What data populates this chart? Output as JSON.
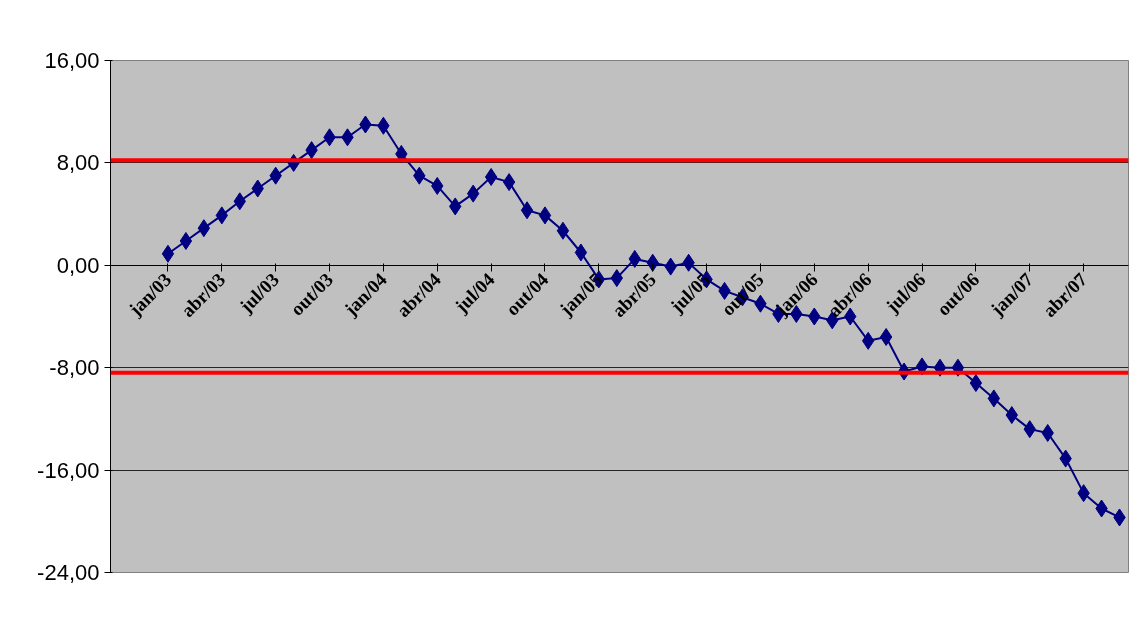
{
  "chart_data": {
    "type": "line",
    "categories": [
      "jan/03",
      null,
      null,
      "abr/03",
      null,
      null,
      "jul/03",
      null,
      null,
      "out/03",
      null,
      null,
      "jan/04",
      null,
      null,
      "abr/04",
      null,
      null,
      "jul/04",
      null,
      null,
      "out/04",
      null,
      null,
      "jan/05",
      null,
      null,
      "abr/05",
      null,
      null,
      "jul/05",
      null,
      null,
      "out/05",
      null,
      null,
      "jan/06",
      null,
      null,
      "abr/06",
      null,
      null,
      "jul/06",
      null,
      null,
      "out/06",
      null,
      null,
      "jan/07",
      null,
      null,
      "abr/07",
      null,
      null
    ],
    "series": [
      {
        "color": "#000080",
        "values": [
          0.9,
          1.9,
          2.9,
          3.9,
          5.0,
          6.0,
          7.0,
          8.0,
          9.0,
          10.0,
          10.0,
          11.0,
          10.9,
          8.7,
          7.0,
          6.2,
          4.6,
          5.6,
          6.9,
          6.5,
          4.3,
          3.9,
          2.7,
          1.0,
          -1.1,
          -1.0,
          0.5,
          0.2,
          -0.1,
          0.2,
          -1.1,
          -2.0,
          -2.5,
          -3.0,
          -3.8,
          -3.8,
          -4.0,
          -4.3,
          -4.0,
          -5.9,
          -5.6,
          -8.3,
          -7.9,
          -8.0,
          -8.0,
          -9.2,
          -10.4,
          -11.7,
          -12.8,
          -13.1,
          -15.1,
          -17.8,
          -19.0,
          -19.7
        ]
      }
    ],
    "ylim": [
      -24,
      16
    ],
    "yticks": [
      {
        "value": -24,
        "label": "-24,00"
      },
      {
        "value": -16,
        "label": "-16,00"
      },
      {
        "value": -8,
        "label": "-8,00"
      },
      {
        "value": 0,
        "label": "0,00"
      },
      {
        "value": 8,
        "label": "8,00"
      },
      {
        "value": 16,
        "label": "16,00"
      }
    ],
    "grid": "y",
    "marker": "diamond",
    "line_style": "solid",
    "ref_lines": [
      {
        "axis": "y",
        "value": 8.2,
        "color": "#ff0000"
      },
      {
        "axis": "y",
        "value": -8.4,
        "color": "#ff0000"
      }
    ]
  }
}
